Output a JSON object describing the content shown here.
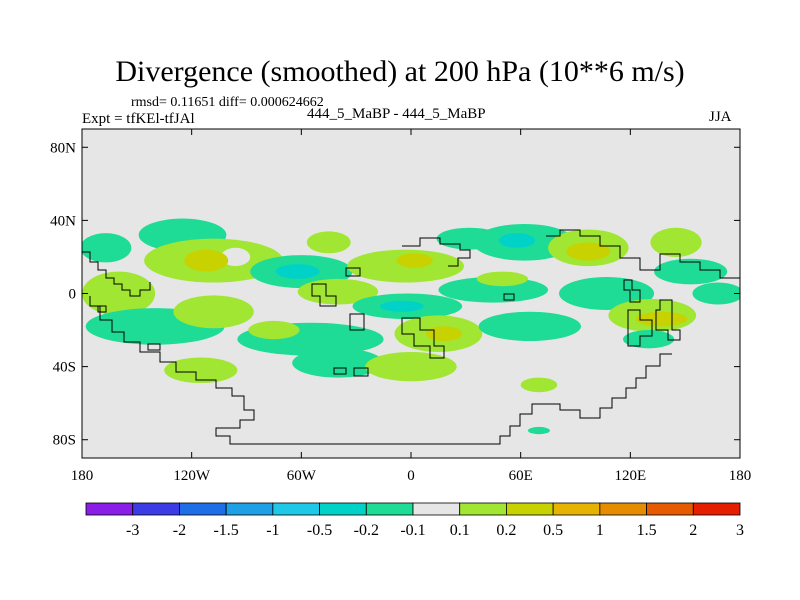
{
  "header": {
    "title": "Divergence (smoothed) at 200 hPa (10**6 m/s)",
    "stats": "rmsd= 0.11651 diff= 0.000624662",
    "experiment": "Expt = tfKEl-tfJAl",
    "runs": "444_5_MaBP - 444_5_MaBP",
    "season": "JJA"
  },
  "chart_data": {
    "type": "heatmap",
    "title": "Divergence (smoothed) at 200 hPa (10**6 m/s)",
    "projection": "cylindrical equidistant",
    "xlim": [
      -180,
      180
    ],
    "ylim": [
      -90,
      90
    ],
    "x_ticks": [
      {
        "value": -180,
        "label": "180"
      },
      {
        "value": -120,
        "label": "120W"
      },
      {
        "value": -60,
        "label": "60W"
      },
      {
        "value": 0,
        "label": "0"
      },
      {
        "value": 60,
        "label": "60E"
      },
      {
        "value": 120,
        "label": "120E"
      },
      {
        "value": 180,
        "label": "180"
      }
    ],
    "y_ticks": [
      {
        "value": 80,
        "label": "80N"
      },
      {
        "value": 40,
        "label": "40N"
      },
      {
        "value": 0,
        "label": "0"
      },
      {
        "value": -40,
        "label": "40S"
      },
      {
        "value": -80,
        "label": "80S"
      }
    ],
    "colorbar": {
      "orientation": "horizontal",
      "boundaries": [
        "-3",
        "-2",
        "-1.5",
        "-1",
        "-0.5",
        "-0.2",
        "-0.1",
        "0.1",
        "0.2",
        "0.5",
        "1",
        "1.5",
        "2",
        "3"
      ],
      "colors": [
        "#8a1ee6",
        "#3c3ce6",
        "#1e6ee6",
        "#1ea0e6",
        "#1ec8e6",
        "#00d2c8",
        "#1edc96",
        "#e6e6e6",
        "#a0e632",
        "#c8d200",
        "#e6b400",
        "#e68c00",
        "#e65a00",
        "#e61e00"
      ]
    },
    "field_summary": "Weak divergence anomalies confined mainly to 45N-55S; values between -0.5 and 0.5, mostly -0.2 to 0.2; background (-0.1 to 0.1) elsewhere",
    "patches": [
      {
        "lon": -167,
        "lat": 25,
        "rx": 14,
        "ry": 8,
        "level": -0.15
      },
      {
        "lon": -125,
        "lat": 32,
        "rx": 24,
        "ry": 9,
        "level": -0.15
      },
      {
        "lon": -108,
        "lat": 18,
        "rx": 38,
        "ry": 12,
        "level": 0.15
      },
      {
        "lon": -96,
        "lat": 20,
        "rx": 8,
        "ry": 5,
        "level": 0.0
      },
      {
        "lon": -112,
        "lat": 18,
        "rx": 12,
        "ry": 6,
        "level": 0.3
      },
      {
        "lon": -60,
        "lat": 12,
        "rx": 28,
        "ry": 9,
        "level": -0.15
      },
      {
        "lon": -62,
        "lat": 12,
        "rx": 12,
        "ry": 4,
        "level": -0.3
      },
      {
        "lon": -45,
        "lat": 28,
        "rx": 12,
        "ry": 6,
        "level": 0.15
      },
      {
        "lon": -3,
        "lat": 15,
        "rx": 32,
        "ry": 9,
        "level": 0.15
      },
      {
        "lon": 2,
        "lat": 18,
        "rx": 10,
        "ry": 4,
        "level": 0.3
      },
      {
        "lon": 32,
        "lat": 30,
        "rx": 18,
        "ry": 6,
        "level": -0.15
      },
      {
        "lon": 62,
        "lat": 28,
        "rx": 28,
        "ry": 10,
        "level": -0.15
      },
      {
        "lon": 58,
        "lat": 29,
        "rx": 10,
        "ry": 4,
        "level": -0.3
      },
      {
        "lon": 97,
        "lat": 25,
        "rx": 22,
        "ry": 10,
        "level": 0.15
      },
      {
        "lon": 97,
        "lat": 23,
        "rx": 12,
        "ry": 5,
        "level": 0.3
      },
      {
        "lon": 145,
        "lat": 28,
        "rx": 14,
        "ry": 8,
        "level": 0.15
      },
      {
        "lon": 153,
        "lat": 12,
        "rx": 20,
        "ry": 7,
        "level": -0.15
      },
      {
        "lon": -160,
        "lat": 0,
        "rx": 20,
        "ry": 12,
        "level": 0.15
      },
      {
        "lon": -140,
        "lat": -18,
        "rx": 38,
        "ry": 10,
        "level": -0.15
      },
      {
        "lon": -108,
        "lat": -10,
        "rx": 22,
        "ry": 9,
        "level": 0.15
      },
      {
        "lon": -40,
        "lat": 1,
        "rx": 22,
        "ry": 7,
        "level": 0.15
      },
      {
        "lon": -2,
        "lat": -7,
        "rx": 30,
        "ry": 7,
        "level": -0.15
      },
      {
        "lon": -5,
        "lat": -7,
        "rx": 12,
        "ry": 3,
        "level": -0.3
      },
      {
        "lon": 45,
        "lat": 2,
        "rx": 30,
        "ry": 7,
        "level": -0.15
      },
      {
        "lon": 50,
        "lat": 8,
        "rx": 14,
        "ry": 4,
        "level": 0.15
      },
      {
        "lon": 107,
        "lat": 0,
        "rx": 26,
        "ry": 9,
        "level": -0.15
      },
      {
        "lon": 132,
        "lat": -12,
        "rx": 24,
        "ry": 9,
        "level": 0.15
      },
      {
        "lon": 137,
        "lat": -14,
        "rx": 14,
        "ry": 4,
        "level": 0.3
      },
      {
        "lon": 130,
        "lat": -25,
        "rx": 14,
        "ry": 5,
        "level": -0.15
      },
      {
        "lon": 168,
        "lat": 0,
        "rx": 14,
        "ry": 6,
        "level": -0.15
      },
      {
        "lon": -55,
        "lat": -25,
        "rx": 40,
        "ry": 9,
        "level": -0.15
      },
      {
        "lon": -75,
        "lat": -20,
        "rx": 14,
        "ry": 5,
        "level": 0.15
      },
      {
        "lon": 15,
        "lat": -22,
        "rx": 24,
        "ry": 10,
        "level": 0.15
      },
      {
        "lon": 18,
        "lat": -22,
        "rx": 10,
        "ry": 4,
        "level": 0.3
      },
      {
        "lon": 65,
        "lat": -18,
        "rx": 28,
        "ry": 8,
        "level": -0.15
      },
      {
        "lon": -115,
        "lat": -42,
        "rx": 20,
        "ry": 7,
        "level": 0.15
      },
      {
        "lon": -40,
        "lat": -38,
        "rx": 25,
        "ry": 8,
        "level": -0.15
      },
      {
        "lon": 0,
        "lat": -40,
        "rx": 25,
        "ry": 8,
        "level": 0.15
      },
      {
        "lon": 70,
        "lat": -50,
        "rx": 10,
        "ry": 4,
        "level": 0.15
      },
      {
        "lon": 70,
        "lat": -75,
        "rx": 6,
        "ry": 2,
        "level": -0.15
      }
    ]
  }
}
